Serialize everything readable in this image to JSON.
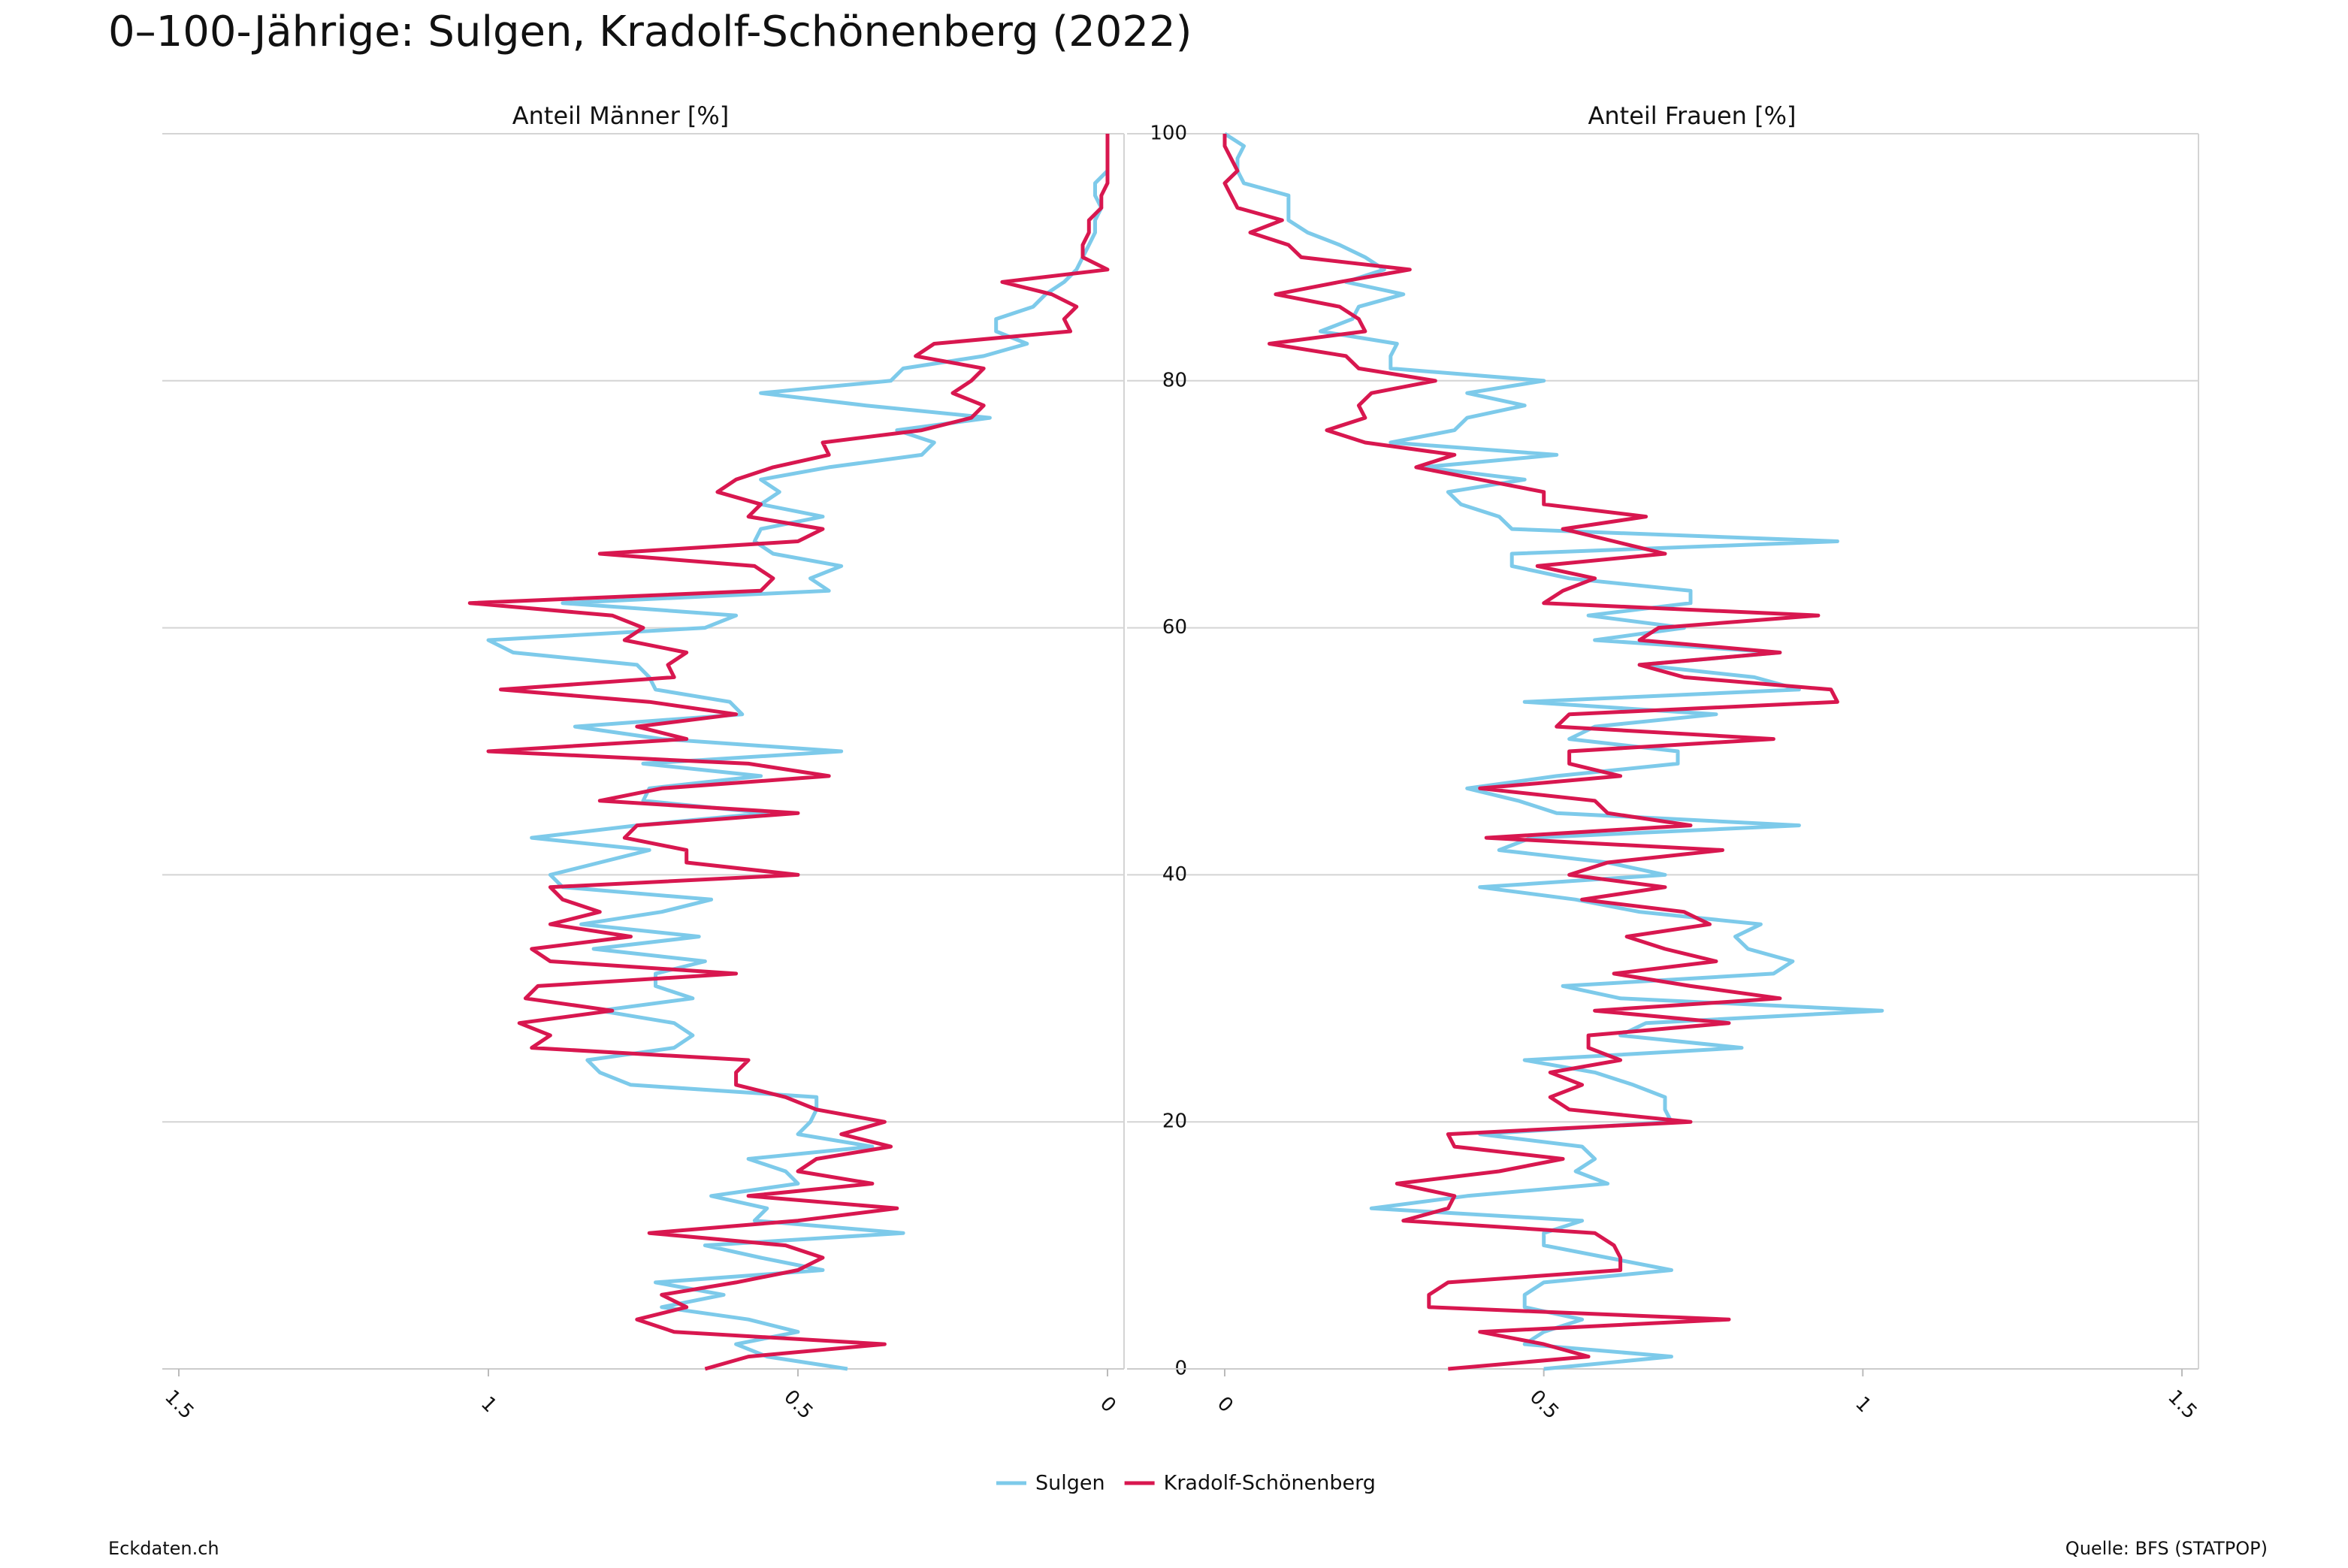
{
  "page": {
    "title": "0–100-Jährige: Sulgen, Kradolf-Schönenberg (2022)",
    "credit": "Eckdaten.ch",
    "source": "Quelle: BFS (STATPOP)"
  },
  "chart_data": [
    {
      "type": "line",
      "title": "Anteil Männer [%]",
      "xlim": [
        1.5,
        0
      ],
      "xticks": [
        1.5,
        1,
        0.5,
        0
      ],
      "ylim": [
        0,
        100
      ],
      "yticks": [
        0,
        20,
        40,
        60,
        80,
        100
      ],
      "grid": true,
      "y": [
        0,
        1,
        2,
        3,
        4,
        5,
        6,
        7,
        8,
        9,
        10,
        11,
        12,
        13,
        14,
        15,
        16,
        17,
        18,
        19,
        20,
        21,
        22,
        23,
        24,
        25,
        26,
        27,
        28,
        29,
        30,
        31,
        32,
        33,
        34,
        35,
        36,
        37,
        38,
        39,
        40,
        41,
        42,
        43,
        44,
        45,
        46,
        47,
        48,
        49,
        50,
        51,
        52,
        53,
        54,
        55,
        56,
        57,
        58,
        59,
        60,
        61,
        62,
        63,
        64,
        65,
        66,
        67,
        68,
        69,
        70,
        71,
        72,
        73,
        74,
        75,
        76,
        77,
        78,
        79,
        80,
        81,
        82,
        83,
        84,
        85,
        86,
        87,
        88,
        89,
        90,
        91,
        92,
        93,
        94,
        95,
        96,
        97,
        98,
        99,
        100
      ],
      "series": [
        {
          "name": "Sulgen",
          "color": "#7dcaea",
          "values": [
            0.42,
            0.55,
            0.6,
            0.5,
            0.58,
            0.72,
            0.62,
            0.73,
            0.46,
            0.56,
            0.65,
            0.33,
            0.57,
            0.55,
            0.64,
            0.5,
            0.52,
            0.58,
            0.38,
            0.5,
            0.48,
            0.47,
            0.47,
            0.77,
            0.82,
            0.84,
            0.7,
            0.67,
            0.7,
            0.82,
            0.67,
            0.73,
            0.73,
            0.65,
            0.83,
            0.66,
            0.85,
            0.72,
            0.64,
            0.88,
            0.9,
            0.82,
            0.74,
            0.93,
            0.76,
            0.55,
            0.75,
            0.74,
            0.56,
            0.75,
            0.43,
            0.72,
            0.86,
            0.59,
            0.61,
            0.73,
            0.74,
            0.76,
            0.96,
            1.0,
            0.65,
            0.6,
            0.88,
            0.45,
            0.48,
            0.43,
            0.54,
            0.57,
            0.56,
            0.46,
            0.56,
            0.53,
            0.56,
            0.45,
            0.3,
            0.28,
            0.34,
            0.19,
            0.39,
            0.56,
            0.35,
            0.33,
            0.2,
            0.13,
            0.18,
            0.18,
            0.12,
            0.1,
            0.07,
            0.05,
            0.04,
            0.03,
            0.02,
            0.02,
            0.01,
            0.02,
            0.02,
            0.0,
            0.0,
            0.0,
            0.0
          ]
        },
        {
          "name": "Kradolf-Schönenberg",
          "color": "#d8174f",
          "values": [
            0.65,
            0.58,
            0.36,
            0.7,
            0.76,
            0.68,
            0.72,
            0.6,
            0.5,
            0.46,
            0.52,
            0.74,
            0.5,
            0.34,
            0.58,
            0.38,
            0.5,
            0.47,
            0.35,
            0.43,
            0.36,
            0.47,
            0.52,
            0.6,
            0.6,
            0.58,
            0.93,
            0.9,
            0.95,
            0.8,
            0.94,
            0.92,
            0.6,
            0.9,
            0.93,
            0.77,
            0.9,
            0.82,
            0.88,
            0.9,
            0.5,
            0.68,
            0.68,
            0.78,
            0.76,
            0.5,
            0.82,
            0.72,
            0.45,
            0.58,
            1.0,
            0.68,
            0.76,
            0.6,
            0.74,
            0.98,
            0.7,
            0.71,
            0.68,
            0.78,
            0.75,
            0.8,
            1.03,
            0.56,
            0.54,
            0.57,
            0.82,
            0.5,
            0.46,
            0.58,
            0.56,
            0.63,
            0.6,
            0.54,
            0.45,
            0.46,
            0.3,
            0.22,
            0.2,
            0.25,
            0.22,
            0.2,
            0.31,
            0.28,
            0.06,
            0.07,
            0.05,
            0.09,
            0.17,
            0.0,
            0.04,
            0.04,
            0.03,
            0.03,
            0.01,
            0.01,
            0.0,
            0.0,
            0.0,
            0.0,
            0.0
          ]
        }
      ]
    },
    {
      "type": "line",
      "title": "Anteil Frauen [%]",
      "xlim": [
        0,
        1.5
      ],
      "xticks": [
        0,
        0.5,
        1,
        1.5
      ],
      "ylim": [
        0,
        100
      ],
      "yticks": [
        0,
        20,
        40,
        60,
        80,
        100
      ],
      "grid": true,
      "y": [
        0,
        1,
        2,
        3,
        4,
        5,
        6,
        7,
        8,
        9,
        10,
        11,
        12,
        13,
        14,
        15,
        16,
        17,
        18,
        19,
        20,
        21,
        22,
        23,
        24,
        25,
        26,
        27,
        28,
        29,
        30,
        31,
        32,
        33,
        34,
        35,
        36,
        37,
        38,
        39,
        40,
        41,
        42,
        43,
        44,
        45,
        46,
        47,
        48,
        49,
        50,
        51,
        52,
        53,
        54,
        55,
        56,
        57,
        58,
        59,
        60,
        61,
        62,
        63,
        64,
        65,
        66,
        67,
        68,
        69,
        70,
        71,
        72,
        73,
        74,
        75,
        76,
        77,
        78,
        79,
        80,
        81,
        82,
        83,
        84,
        85,
        86,
        87,
        88,
        89,
        90,
        91,
        92,
        93,
        94,
        95,
        96,
        97,
        98,
        99,
        100
      ],
      "series": [
        {
          "name": "Sulgen",
          "color": "#7dcaea",
          "values": [
            0.5,
            0.7,
            0.47,
            0.5,
            0.56,
            0.47,
            0.47,
            0.5,
            0.7,
            0.6,
            0.5,
            0.5,
            0.56,
            0.23,
            0.38,
            0.6,
            0.55,
            0.58,
            0.56,
            0.4,
            0.7,
            0.69,
            0.69,
            0.64,
            0.58,
            0.47,
            0.81,
            0.62,
            0.66,
            1.03,
            0.62,
            0.53,
            0.86,
            0.89,
            0.82,
            0.8,
            0.84,
            0.65,
            0.55,
            0.4,
            0.69,
            0.6,
            0.43,
            0.48,
            0.9,
            0.52,
            0.46,
            0.38,
            0.52,
            0.71,
            0.71,
            0.54,
            0.58,
            0.77,
            0.47,
            0.9,
            0.83,
            0.65,
            0.87,
            0.58,
            0.72,
            0.57,
            0.73,
            0.73,
            0.54,
            0.45,
            0.45,
            0.96,
            0.45,
            0.43,
            0.37,
            0.35,
            0.47,
            0.31,
            0.52,
            0.26,
            0.36,
            0.38,
            0.47,
            0.38,
            0.5,
            0.26,
            0.26,
            0.27,
            0.15,
            0.2,
            0.21,
            0.28,
            0.19,
            0.25,
            0.22,
            0.18,
            0.13,
            0.1,
            0.1,
            0.1,
            0.03,
            0.02,
            0.02,
            0.03,
            0.0
          ]
        },
        {
          "name": "Kradolf-Schönenberg",
          "color": "#d8174f",
          "values": [
            0.35,
            0.57,
            0.5,
            0.4,
            0.79,
            0.32,
            0.32,
            0.35,
            0.62,
            0.62,
            0.61,
            0.58,
            0.28,
            0.35,
            0.36,
            0.27,
            0.43,
            0.53,
            0.36,
            0.35,
            0.73,
            0.54,
            0.51,
            0.56,
            0.51,
            0.62,
            0.57,
            0.57,
            0.79,
            0.58,
            0.87,
            0.73,
            0.61,
            0.77,
            0.69,
            0.63,
            0.76,
            0.72,
            0.56,
            0.69,
            0.54,
            0.6,
            0.78,
            0.41,
            0.73,
            0.6,
            0.58,
            0.4,
            0.62,
            0.54,
            0.54,
            0.86,
            0.52,
            0.54,
            0.96,
            0.95,
            0.72,
            0.65,
            0.87,
            0.65,
            0.68,
            0.93,
            0.5,
            0.53,
            0.58,
            0.49,
            0.69,
            0.61,
            0.53,
            0.66,
            0.5,
            0.5,
            0.4,
            0.3,
            0.36,
            0.22,
            0.16,
            0.22,
            0.21,
            0.23,
            0.33,
            0.21,
            0.19,
            0.07,
            0.22,
            0.21,
            0.18,
            0.08,
            0.18,
            0.29,
            0.12,
            0.1,
            0.04,
            0.09,
            0.02,
            0.01,
            0.0,
            0.02,
            0.01,
            0.0,
            0.0
          ]
        }
      ]
    }
  ]
}
